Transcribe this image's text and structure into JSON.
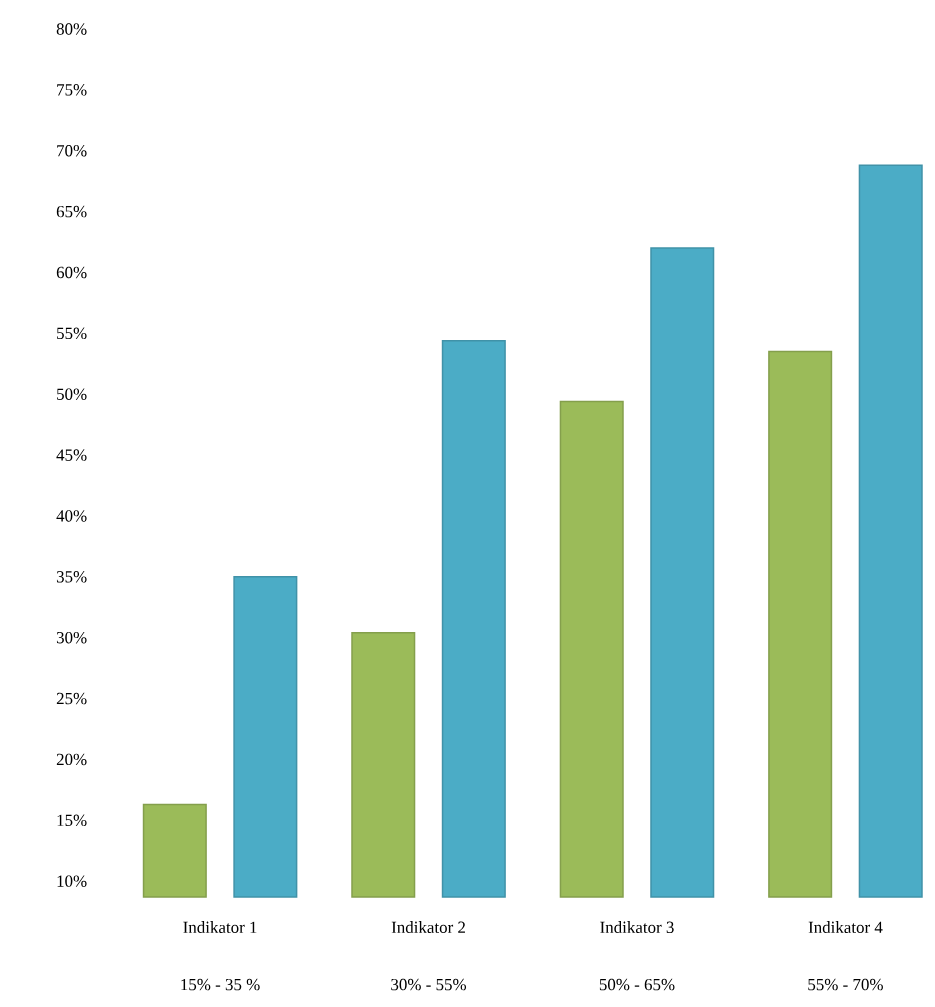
{
  "chart_data": {
    "type": "bar",
    "categories": [
      "Indikator 1",
      "Indikator 2",
      "Indikator 3",
      "Indikator 4"
    ],
    "series": [
      {
        "color": "#9bbb59",
        "values": [
          16.3,
          30.4,
          49.4,
          53.5
        ]
      },
      {
        "color": "#4bacc6",
        "values": [
          35.0,
          54.4,
          62.0,
          68.8
        ]
      }
    ],
    "annotations": [
      "15% - 35 %",
      "30% - 55%",
      "50% - 65%",
      "55% - 70%"
    ],
    "ylim": [
      8.7,
      80
    ],
    "yticks": [
      {
        "value": 10,
        "label": "10%"
      },
      {
        "value": 15,
        "label": "15%"
      },
      {
        "value": 20,
        "label": "20%"
      },
      {
        "value": 25,
        "label": "25%"
      },
      {
        "value": 30,
        "label": "30%"
      },
      {
        "value": 35,
        "label": "35%"
      },
      {
        "value": 40,
        "label": "40%"
      },
      {
        "value": 45,
        "label": "45%"
      },
      {
        "value": 50,
        "label": "50%"
      },
      {
        "value": 55,
        "label": "55%"
      },
      {
        "value": 60,
        "label": "60%"
      },
      {
        "value": 65,
        "label": "65%"
      },
      {
        "value": 70,
        "label": "70%"
      },
      {
        "value": 75,
        "label": "75%"
      },
      {
        "value": 80,
        "label": "80%"
      }
    ],
    "grid": false
  }
}
